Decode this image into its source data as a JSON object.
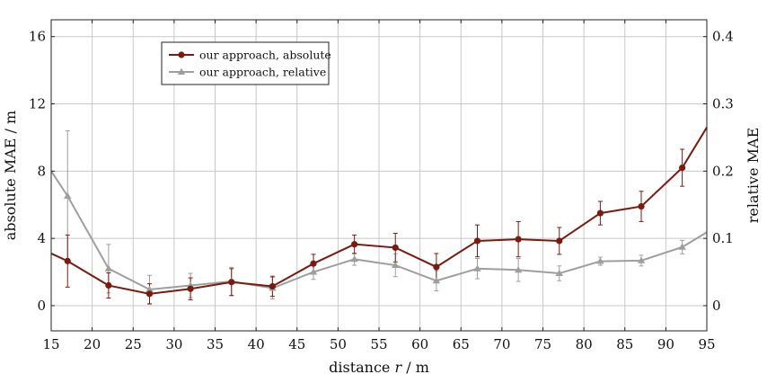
{
  "chart_data": {
    "type": "line",
    "xlabel": "distance r / m",
    "ylabel_left": "absolute MAE / m",
    "ylabel_right": "relative MAE",
    "xlim": [
      15,
      95
    ],
    "ylim_left": [
      -1.5,
      17
    ],
    "ylim_right": [
      -0.0375,
      0.425
    ],
    "xticks": [
      15,
      20,
      25,
      30,
      35,
      40,
      45,
      50,
      55,
      60,
      65,
      70,
      75,
      80,
      85,
      90,
      95
    ],
    "yticks_left": [
      0,
      4,
      8,
      12,
      16
    ],
    "yticks_right": [
      0,
      0.1,
      0.2,
      0.3,
      0.4
    ],
    "grid": true,
    "legend_position": "top-left",
    "colors": {
      "absolute": "#7a1a10",
      "relative": "#9e9e9e",
      "grid": "#c8c8c8"
    },
    "series": [
      {
        "name": "our approach, absolute",
        "axis": "left",
        "marker": "circle",
        "x": [
          15,
          17,
          22,
          27,
          32,
          37,
          42,
          47,
          52,
          57,
          62,
          67,
          72,
          77,
          82,
          87,
          92,
          95
        ],
        "y": [
          3.1,
          2.65,
          1.2,
          0.7,
          1.0,
          1.4,
          1.15,
          2.5,
          3.65,
          3.45,
          2.3,
          3.85,
          3.95,
          3.85,
          5.5,
          5.9,
          8.2,
          10.6
        ],
        "err": [
          null,
          1.55,
          0.75,
          0.6,
          0.65,
          0.8,
          0.6,
          0.55,
          0.55,
          0.85,
          0.8,
          0.95,
          1.05,
          0.8,
          0.7,
          0.9,
          1.1,
          null
        ]
      },
      {
        "name": "our approach, relative",
        "axis": "right",
        "marker": "triangle",
        "x": [
          15,
          17,
          22,
          27,
          32,
          37,
          42,
          47,
          52,
          57,
          62,
          67,
          72,
          77,
          82,
          87,
          92,
          95
        ],
        "y": [
          0.2,
          0.163,
          0.055,
          0.024,
          0.03,
          0.036,
          0.026,
          0.05,
          0.069,
          0.06,
          0.037,
          0.055,
          0.053,
          0.048,
          0.066,
          0.067,
          0.087,
          0.109
        ],
        "err": [
          null,
          0.097,
          0.036,
          0.021,
          0.018,
          0.021,
          0.016,
          0.011,
          0.009,
          0.017,
          0.015,
          0.015,
          0.017,
          0.011,
          0.006,
          0.008,
          0.01,
          null
        ]
      }
    ]
  }
}
